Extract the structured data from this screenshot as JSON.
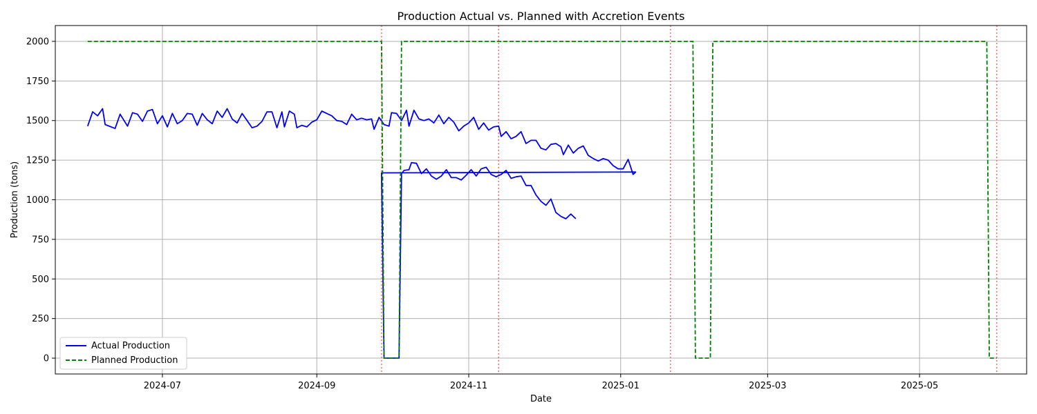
{
  "chart_data": {
    "type": "line",
    "title": "Production Actual vs. Planned with Accretion Events",
    "xlabel": "Date",
    "ylabel": "Production (tons)",
    "xlim": [
      "2024-05-19",
      "2025-06-13"
    ],
    "ylim": [
      -100,
      2100
    ],
    "x_ticks": [
      "2024-07-01",
      "2024-09-01",
      "2024-11-01",
      "2025-01-01",
      "2025-03-01",
      "2025-05-01"
    ],
    "x_tick_labels": [
      "2024-07",
      "2024-09",
      "2024-11",
      "2025-01",
      "2025-03",
      "2025-05"
    ],
    "y_ticks": [
      0,
      250,
      500,
      750,
      1000,
      1250,
      1500,
      1750,
      2000
    ],
    "grid": true,
    "legend_position": "lower-left",
    "colors": {
      "actual": "#0000ee",
      "planned": "#008000",
      "event": "#ff6666",
      "grid": "#b0b0b0"
    },
    "series": [
      {
        "name": "Actual Production",
        "style": "solid",
        "points": [
          [
            "2024-06-01",
            1465
          ],
          [
            "2024-06-03",
            1555
          ],
          [
            "2024-06-05",
            1530
          ],
          [
            "2024-06-07",
            1575
          ],
          [
            "2024-06-08",
            1475
          ],
          [
            "2024-06-12",
            1450
          ],
          [
            "2024-06-14",
            1540
          ],
          [
            "2024-06-17",
            1465
          ],
          [
            "2024-06-19",
            1550
          ],
          [
            "2024-06-21",
            1540
          ],
          [
            "2024-06-23",
            1495
          ],
          [
            "2024-06-25",
            1560
          ],
          [
            "2024-06-27",
            1570
          ],
          [
            "2024-06-29",
            1480
          ],
          [
            "2024-07-01",
            1530
          ],
          [
            "2024-07-03",
            1460
          ],
          [
            "2024-07-05",
            1545
          ],
          [
            "2024-07-07",
            1480
          ],
          [
            "2024-07-09",
            1500
          ],
          [
            "2024-07-11",
            1545
          ],
          [
            "2024-07-13",
            1540
          ],
          [
            "2024-07-15",
            1470
          ],
          [
            "2024-07-17",
            1545
          ],
          [
            "2024-07-19",
            1505
          ],
          [
            "2024-07-21",
            1480
          ],
          [
            "2024-07-23",
            1560
          ],
          [
            "2024-07-25",
            1520
          ],
          [
            "2024-07-27",
            1575
          ],
          [
            "2024-07-29",
            1510
          ],
          [
            "2024-07-31",
            1485
          ],
          [
            "2024-08-02",
            1545
          ],
          [
            "2024-08-04",
            1500
          ],
          [
            "2024-08-06",
            1455
          ],
          [
            "2024-08-08",
            1465
          ],
          [
            "2024-08-10",
            1495
          ],
          [
            "2024-08-12",
            1555
          ],
          [
            "2024-08-14",
            1555
          ],
          [
            "2024-08-16",
            1455
          ],
          [
            "2024-08-18",
            1555
          ],
          [
            "2024-08-19",
            1460
          ],
          [
            "2024-08-21",
            1560
          ],
          [
            "2024-08-23",
            1540
          ],
          [
            "2024-08-24",
            1455
          ],
          [
            "2024-08-26",
            1470
          ],
          [
            "2024-08-28",
            1460
          ],
          [
            "2024-08-30",
            1490
          ],
          [
            "2024-09-01",
            1505
          ],
          [
            "2024-09-03",
            1560
          ],
          [
            "2024-09-05",
            1545
          ],
          [
            "2024-09-07",
            1530
          ],
          [
            "2024-09-09",
            1500
          ],
          [
            "2024-09-11",
            1495
          ],
          [
            "2024-09-13",
            1475
          ],
          [
            "2024-09-15",
            1540
          ],
          [
            "2024-09-17",
            1505
          ],
          [
            "2024-09-19",
            1515
          ],
          [
            "2024-09-21",
            1505
          ],
          [
            "2024-09-23",
            1510
          ],
          [
            "2024-09-24",
            1445
          ],
          [
            "2024-09-26",
            1520
          ],
          [
            "2024-09-28",
            1475
          ],
          [
            "2024-09-30",
            1465
          ],
          [
            "2024-10-01",
            1550
          ],
          [
            "2024-10-03",
            1545
          ],
          [
            "2024-10-05",
            1500
          ],
          [
            "2024-10-07",
            1565
          ],
          [
            "2024-10-08",
            1465
          ],
          [
            "2024-10-10",
            1565
          ],
          [
            "2024-10-12",
            1510
          ],
          [
            "2024-10-14",
            1500
          ],
          [
            "2024-10-16",
            1510
          ],
          [
            "2024-10-18",
            1485
          ],
          [
            "2024-10-20",
            1535
          ],
          [
            "2024-10-22",
            1480
          ],
          [
            "2024-10-24",
            1520
          ],
          [
            "2024-10-26",
            1490
          ],
          [
            "2024-10-28",
            1435
          ],
          [
            "2024-10-30",
            1465
          ],
          [
            "2024-11-01",
            1485
          ],
          [
            "2024-11-03",
            1520
          ],
          [
            "2024-11-05",
            1445
          ],
          [
            "2024-11-07",
            1485
          ],
          [
            "2024-11-09",
            1440
          ],
          [
            "2024-11-11",
            1460
          ],
          [
            "2024-11-13",
            1465
          ],
          [
            "2024-11-14",
            1400
          ],
          [
            "2024-11-16",
            1430
          ],
          [
            "2024-11-18",
            1385
          ],
          [
            "2024-11-20",
            1400
          ],
          [
            "2024-11-22",
            1430
          ],
          [
            "2024-11-24",
            1355
          ],
          [
            "2024-11-26",
            1375
          ],
          [
            "2024-11-28",
            1375
          ],
          [
            "2024-11-30",
            1325
          ],
          [
            "2024-12-02",
            1315
          ],
          [
            "2024-12-04",
            1350
          ],
          [
            "2024-12-06",
            1355
          ],
          [
            "2024-12-08",
            1335
          ],
          [
            "2024-12-09",
            1285
          ],
          [
            "2024-12-11",
            1345
          ],
          [
            "2024-12-13",
            1295
          ],
          [
            "2024-12-15",
            1325
          ],
          [
            "2024-12-17",
            1340
          ],
          [
            "2024-12-19",
            1280
          ],
          [
            "2024-12-21",
            1260
          ],
          [
            "2024-12-23",
            1245
          ],
          [
            "2024-12-25",
            1260
          ],
          [
            "2024-12-27",
            1250
          ],
          [
            "2024-12-29",
            1215
          ],
          [
            "2024-12-31",
            1195
          ],
          [
            "2025-01-02",
            1195
          ],
          [
            "2025-01-04",
            1255
          ],
          [
            "2025-01-06",
            1160
          ],
          [
            "2025-01-07",
            1175
          ]
        ]
      },
      {
        "name": "Planned Production",
        "style": "dashed",
        "points": [
          [
            "2024-06-01",
            2000
          ],
          [
            "2024-09-27",
            2000
          ],
          [
            "2024-09-28",
            0
          ],
          [
            "2024-10-04",
            0
          ],
          [
            "2024-10-05",
            2000
          ],
          [
            "2025-01-30",
            2000
          ],
          [
            "2025-01-31",
            0
          ],
          [
            "2025-02-06",
            0
          ],
          [
            "2025-02-07",
            2000
          ],
          [
            "2025-05-28",
            2000
          ],
          [
            "2025-05-29",
            0
          ],
          [
            "2025-06-01",
            0
          ]
        ]
      }
    ],
    "actual_continuation": [
      [
        "2024-09-27",
        1170
      ],
      [
        "2024-09-28",
        0
      ],
      [
        "2024-10-04",
        0
      ],
      [
        "2024-10-05",
        1165
      ],
      [
        "2024-10-06",
        1185
      ],
      [
        "2024-10-08",
        1190
      ],
      [
        "2024-10-09",
        1235
      ],
      [
        "2024-10-11",
        1230
      ],
      [
        "2024-10-13",
        1165
      ],
      [
        "2024-10-15",
        1195
      ],
      [
        "2024-10-17",
        1150
      ],
      [
        "2024-10-19",
        1130
      ],
      [
        "2024-10-21",
        1150
      ],
      [
        "2024-10-23",
        1190
      ],
      [
        "2024-10-25",
        1140
      ],
      [
        "2024-10-27",
        1140
      ],
      [
        "2024-10-29",
        1125
      ],
      [
        "2024-10-31",
        1155
      ],
      [
        "2024-11-02",
        1190
      ],
      [
        "2024-11-04",
        1150
      ],
      [
        "2024-11-06",
        1195
      ],
      [
        "2024-11-08",
        1205
      ],
      [
        "2024-11-10",
        1160
      ],
      [
        "2024-11-12",
        1145
      ],
      [
        "2024-11-14",
        1160
      ],
      [
        "2024-11-16",
        1185
      ],
      [
        "2024-11-18",
        1135
      ],
      [
        "2024-11-20",
        1145
      ],
      [
        "2024-11-22",
        1150
      ],
      [
        "2024-11-24",
        1090
      ],
      [
        "2024-11-26",
        1090
      ],
      [
        "2024-11-28",
        1030
      ],
      [
        "2024-11-30",
        990
      ],
      [
        "2024-12-02",
        965
      ],
      [
        "2024-12-04",
        1005
      ],
      [
        "2024-12-06",
        920
      ],
      [
        "2024-12-08",
        895
      ],
      [
        "2024-12-10",
        880
      ],
      [
        "2024-12-12",
        910
      ],
      [
        "2024-12-14",
        880
      ]
    ],
    "events": [
      "2024-09-27",
      "2024-11-13",
      "2025-01-21",
      "2025-06-01"
    ]
  }
}
